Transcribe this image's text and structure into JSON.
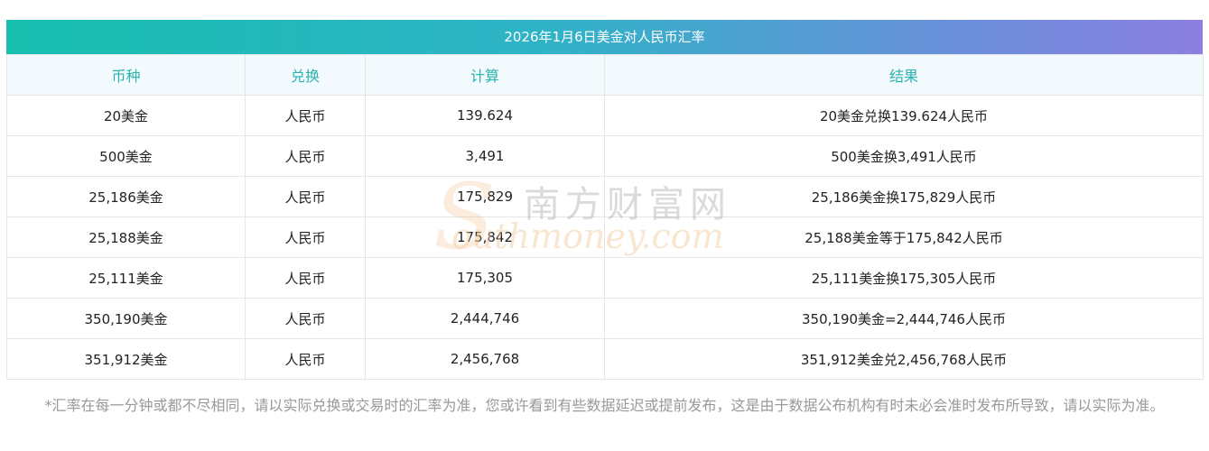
{
  "title": "2026年1月6日美金对人民币汇率",
  "headers": [
    "币种",
    "兑换",
    "计算",
    "结果"
  ],
  "rows": [
    [
      "20美金",
      "人民币",
      "139.624",
      "20美金兑换139.624人民币"
    ],
    [
      "500美金",
      "人民币",
      "3,491",
      "500美金换3,491人民币"
    ],
    [
      "25,186美金",
      "人民币",
      "175,829",
      "25,186美金换175,829人民币"
    ],
    [
      "25,188美金",
      "人民币",
      "175,842",
      "25,188美金等于175,842人民币"
    ],
    [
      "25,111美金",
      "人民币",
      "175,305",
      "25,111美金换175,305人民币"
    ],
    [
      "350,190美金",
      "人民币",
      "2,444,746",
      "350,190美金=2,444,746人民币"
    ],
    [
      "351,912美金",
      "人民币",
      "2,456,768",
      "351,912美金兑2,456,768人民币"
    ]
  ],
  "watermark": {
    "chinese": "南方财富网",
    "english": "outhmoney.com",
    "initial": "S"
  },
  "footnote": "*汇率在每一分钟或都不尽相同，请以实际兑换或交易时的汇率为准，您或许看到有些数据延迟或提前发布，这是由于数据公布机构有时未必会准时发布所导致，请以实际为准。",
  "colors": {
    "header_text": "#2bb3b0",
    "title_gradient_start": "#17bfae",
    "title_gradient_end": "#8b7fe0"
  }
}
